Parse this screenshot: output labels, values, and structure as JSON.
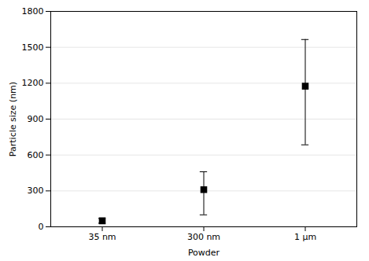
{
  "chart_data": {
    "type": "errorbar",
    "categories": [
      "35 nm",
      "300 nm",
      "1 μm"
    ],
    "values": [
      50,
      310,
      1175
    ],
    "err_lower": [
      20,
      210,
      490
    ],
    "err_upper": [
      20,
      150,
      390
    ],
    "marker": "square",
    "color": "black",
    "xlabel": "Powder",
    "ylabel": "Particle size (nm)",
    "ylim": [
      0,
      1800
    ],
    "yticks": [
      0,
      300,
      600,
      900,
      1200,
      1500,
      1800
    ],
    "grid": true
  }
}
